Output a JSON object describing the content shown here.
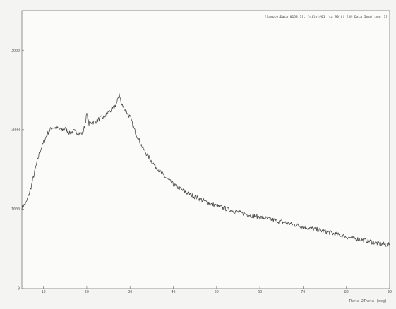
{
  "chart_data": {
    "type": "line",
    "legend_text": "[Sample:Data 0158 1], [nile]#01 (sa 90°C) [XM Data Insp]:mar 1]",
    "legend_position": "top-right",
    "xlabel": "Theta-2Theta (deg)",
    "ylabel": "",
    "xlim": [
      5,
      90
    ],
    "ylim": [
      0,
      3500
    ],
    "x_ticks": [
      10,
      20,
      30,
      40,
      50,
      60,
      70,
      80,
      90
    ],
    "x_tick_labels": [
      "10",
      "20",
      "30",
      "40",
      "50",
      "60",
      "70",
      "80",
      "90"
    ],
    "y_ticks": [
      0,
      1000,
      2000,
      3000
    ],
    "y_tick_labels": [
      "0",
      "1000",
      "2000",
      "3000"
    ],
    "grid": false,
    "line_color": "#4a4a4a",
    "series": [
      {
        "x": [
          5,
          6,
          7,
          8,
          9,
          10,
          11,
          12,
          13,
          14,
          15,
          16,
          17,
          18,
          19,
          19.5,
          20,
          20.5,
          21,
          22,
          23,
          24,
          25,
          26,
          27,
          27.5,
          28,
          29,
          30,
          31,
          32,
          33,
          34,
          35,
          36,
          38,
          40,
          42,
          44,
          46,
          48,
          50,
          55,
          60,
          65,
          70,
          75,
          80,
          85,
          88,
          90
        ],
        "y": [
          1020,
          1080,
          1250,
          1480,
          1700,
          1840,
          1960,
          2030,
          2020,
          2000,
          2010,
          1960,
          1980,
          1960,
          1950,
          2040,
          2200,
          2070,
          2090,
          2100,
          2140,
          2160,
          2220,
          2260,
          2340,
          2460,
          2320,
          2240,
          2160,
          2000,
          1880,
          1760,
          1680,
          1600,
          1530,
          1410,
          1310,
          1240,
          1180,
          1130,
          1080,
          1040,
          960,
          900,
          840,
          780,
          720,
          650,
          600,
          560,
          550
        ]
      }
    ]
  }
}
